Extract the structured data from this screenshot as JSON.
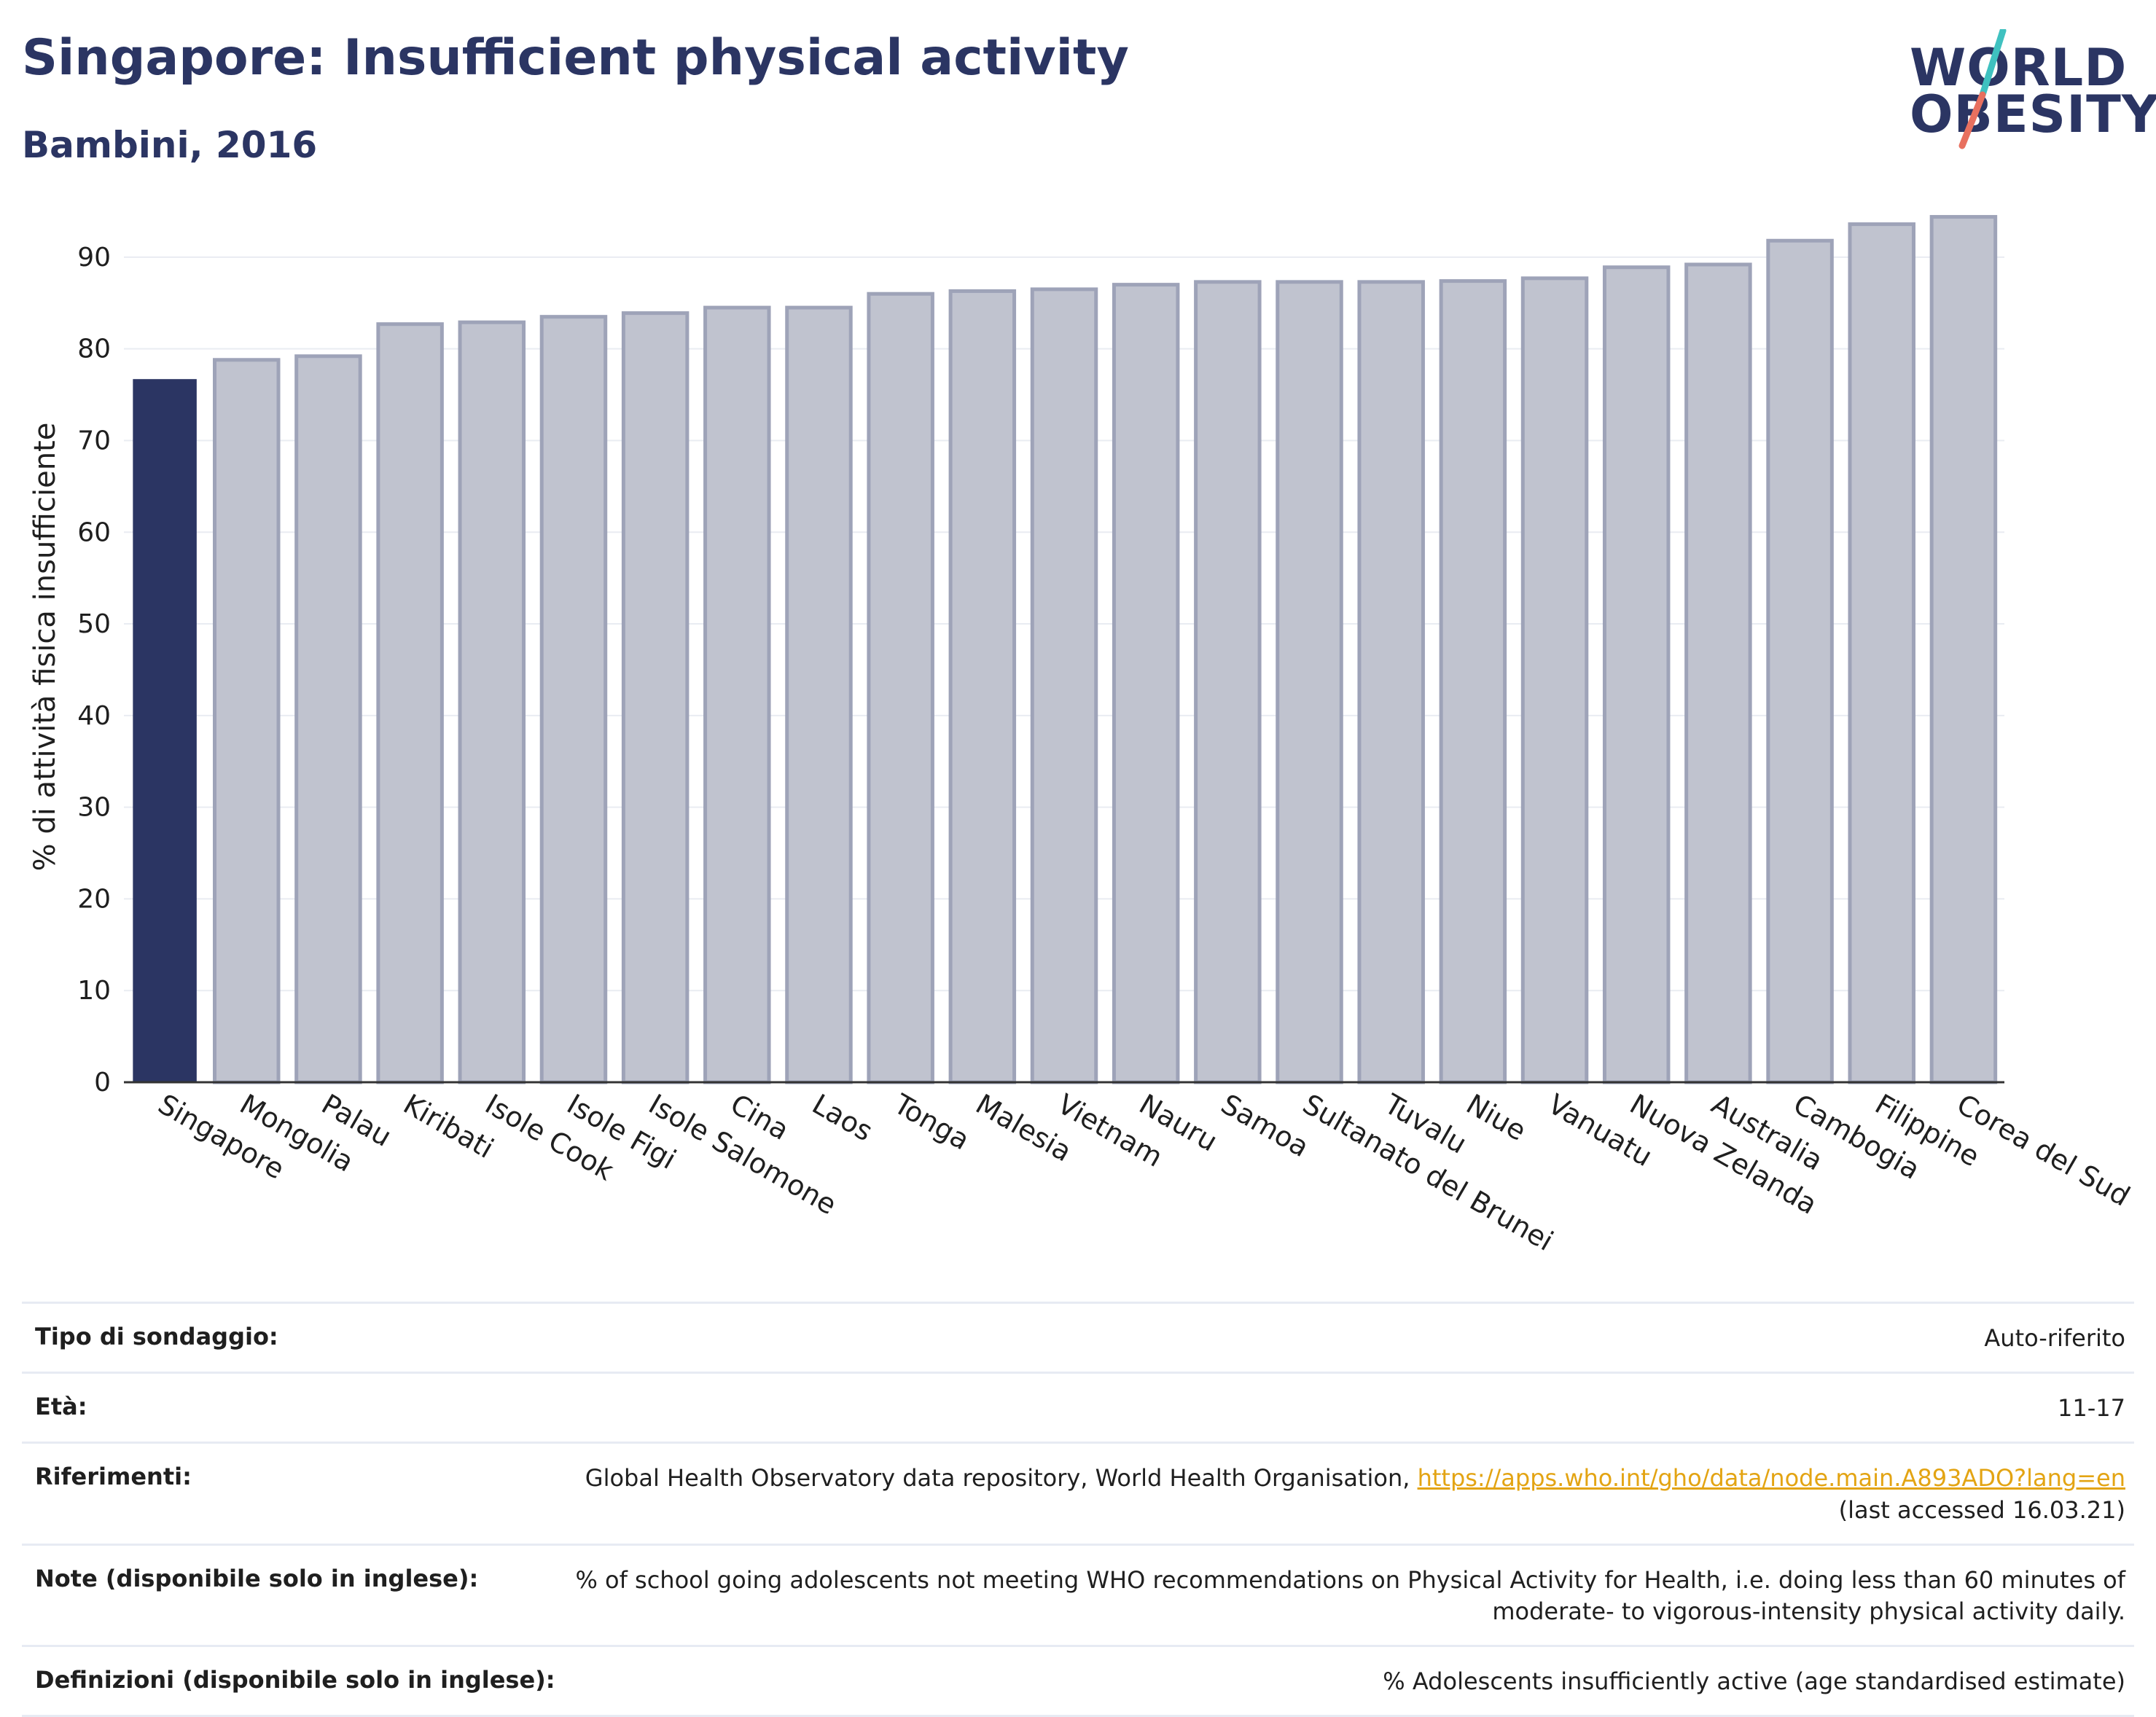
{
  "header": {
    "title": "Singapore: Insufficient physical activity",
    "subtitle": "Bambini, 2016"
  },
  "logo": {
    "line1": "WORLD",
    "line2": "OBESITY",
    "stripe_colors": [
      "#3fc1c0",
      "#e8705f"
    ]
  },
  "colors": {
    "highlight": "#2b3563",
    "bar": "#c0c3cf",
    "bar_stroke": "#9ea3b8",
    "grid": "#e9ecf2",
    "title": "#2b3563",
    "link": "#e3a413"
  },
  "chart_data": {
    "type": "bar",
    "title": "",
    "xlabel": "",
    "ylabel": "% di attività fisica insufficiente",
    "ylim": [
      0,
      95
    ],
    "yticks": [
      0,
      10,
      20,
      30,
      40,
      50,
      60,
      70,
      80,
      90
    ],
    "grid": true,
    "highlight_category": "Singapore",
    "categories": [
      "Singapore",
      "Mongolia",
      "Palau",
      "Kiribati",
      "Isole Cook",
      "Isole Figi",
      "Isole Salomone",
      "Cina",
      "Laos",
      "Tonga",
      "Malesia",
      "Vietnam",
      "Nauru",
      "Samoa",
      "Sultanato del Brunei",
      "Tuvalu",
      "Niue",
      "Vanuatu",
      "Nuova Zelanda",
      "Australia",
      "Cambogia",
      "Filippine",
      "Corea del Sud"
    ],
    "values": [
      76.7,
      78.8,
      79.2,
      82.7,
      82.9,
      83.5,
      83.9,
      84.5,
      84.5,
      86.0,
      86.3,
      86.5,
      87.0,
      87.3,
      87.3,
      87.3,
      87.4,
      87.7,
      88.9,
      89.2,
      91.8,
      93.6,
      94.4
    ]
  },
  "table": {
    "survey_label": "Tipo di sondaggio:",
    "survey_value": "Auto-riferito",
    "age_label": "Età:",
    "age_value": "11-17",
    "refs_label": "Riferimenti:",
    "refs_text": "Global Health Observatory data repository, World Health Organisation, ",
    "refs_link": "https://apps.who.int/gho/data/node.main.A893ADO?lang=en",
    "refs_accessed": "(last accessed 16.03.21)",
    "notes_label": "Note (disponibile solo in inglese):",
    "notes_value": "% of school going adolescents not meeting WHO recommendations on Physical Activity for Health, i.e. doing less than 60 minutes of moderate- to vigorous-intensity physical activity daily.",
    "defs_label": "Definizioni (disponibile solo in inglese):",
    "defs_value": "% Adolescents insufficiently active (age standardised estimate)"
  }
}
